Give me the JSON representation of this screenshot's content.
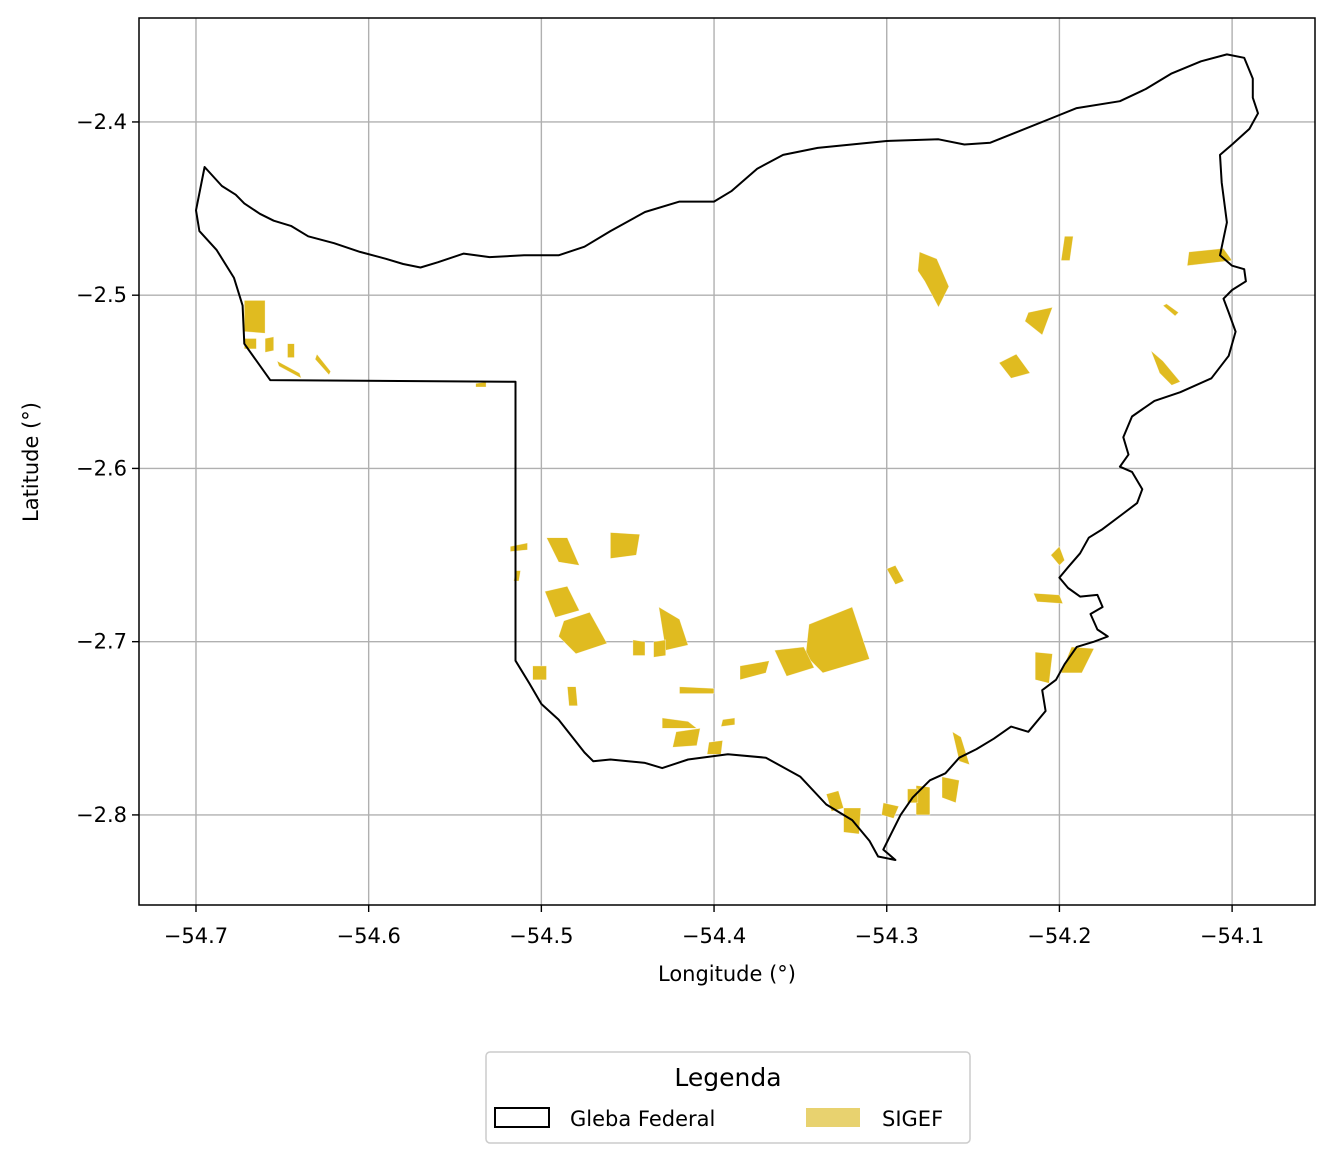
{
  "chart_data": {
    "type": "map",
    "xlabel": "Longitude (°)",
    "ylabel": "Latitude (°)",
    "xlim": [
      -54.733,
      -54.052
    ],
    "ylim": [
      -2.852,
      -2.34
    ],
    "grid": true,
    "x_ticks": [
      -54.7,
      -54.6,
      -54.5,
      -54.4,
      -54.3,
      -54.2,
      -54.1
    ],
    "y_ticks": [
      -2.4,
      -2.5,
      -2.6,
      -2.7,
      -2.8
    ],
    "x_tick_labels": [
      "−54.7",
      "−54.6",
      "−54.5",
      "−54.4",
      "−54.3",
      "−54.2",
      "−54.1"
    ],
    "y_tick_labels": [
      "−2.4",
      "−2.5",
      "−2.6",
      "−2.7",
      "−2.8"
    ],
    "legend": {
      "title": "Legenda",
      "placement": "bottom-center",
      "entries": [
        {
          "label": "Gleba Federal",
          "style": "outline",
          "color": "#000000"
        },
        {
          "label": "SIGEF",
          "style": "fill",
          "color": "#e0bb20"
        }
      ]
    },
    "gleba_boundary": [
      [
        -54.7,
        -2.451
      ],
      [
        -54.695,
        -2.426
      ],
      [
        -54.685,
        -2.437
      ],
      [
        -54.677,
        -2.442
      ],
      [
        -54.672,
        -2.447
      ],
      [
        -54.663,
        -2.453
      ],
      [
        -54.655,
        -2.457
      ],
      [
        -54.645,
        -2.46
      ],
      [
        -54.635,
        -2.466
      ],
      [
        -54.62,
        -2.47
      ],
      [
        -54.605,
        -2.475
      ],
      [
        -54.59,
        -2.479
      ],
      [
        -54.58,
        -2.482
      ],
      [
        -54.57,
        -2.484
      ],
      [
        -54.56,
        -2.481
      ],
      [
        -54.545,
        -2.476
      ],
      [
        -54.53,
        -2.478
      ],
      [
        -54.51,
        -2.477
      ],
      [
        -54.49,
        -2.477
      ],
      [
        -54.475,
        -2.472
      ],
      [
        -54.46,
        -2.463
      ],
      [
        -54.44,
        -2.452
      ],
      [
        -54.42,
        -2.446
      ],
      [
        -54.4,
        -2.446
      ],
      [
        -54.39,
        -2.44
      ],
      [
        -54.375,
        -2.427
      ],
      [
        -54.36,
        -2.419
      ],
      [
        -54.34,
        -2.415
      ],
      [
        -54.3,
        -2.411
      ],
      [
        -54.27,
        -2.41
      ],
      [
        -54.255,
        -2.413
      ],
      [
        -54.24,
        -2.412
      ],
      [
        -54.225,
        -2.406
      ],
      [
        -54.205,
        -2.398
      ],
      [
        -54.19,
        -2.392
      ],
      [
        -54.165,
        -2.388
      ],
      [
        -54.15,
        -2.381
      ],
      [
        -54.135,
        -2.372
      ],
      [
        -54.118,
        -2.365
      ],
      [
        -54.103,
        -2.361
      ],
      [
        -54.093,
        -2.363
      ],
      [
        -54.088,
        -2.375
      ],
      [
        -54.088,
        -2.386
      ],
      [
        -54.085,
        -2.395
      ],
      [
        -54.09,
        -2.404
      ],
      [
        -54.1,
        -2.413
      ],
      [
        -54.107,
        -2.419
      ],
      [
        -54.106,
        -2.435
      ],
      [
        -54.103,
        -2.458
      ],
      [
        -54.107,
        -2.477
      ],
      [
        -54.1,
        -2.483
      ],
      [
        -54.093,
        -2.485
      ],
      [
        -54.092,
        -2.492
      ],
      [
        -54.1,
        -2.497
      ],
      [
        -54.105,
        -2.502
      ],
      [
        -54.102,
        -2.51
      ],
      [
        -54.098,
        -2.521
      ],
      [
        -54.102,
        -2.535
      ],
      [
        -54.112,
        -2.548
      ],
      [
        -54.13,
        -2.556
      ],
      [
        -54.145,
        -2.561
      ],
      [
        -54.158,
        -2.57
      ],
      [
        -54.163,
        -2.582
      ],
      [
        -54.16,
        -2.592
      ],
      [
        -54.165,
        -2.599
      ],
      [
        -54.158,
        -2.602
      ],
      [
        -54.152,
        -2.612
      ],
      [
        -54.155,
        -2.62
      ],
      [
        -54.163,
        -2.626
      ],
      [
        -54.175,
        -2.635
      ],
      [
        -54.183,
        -2.64
      ],
      [
        -54.188,
        -2.649
      ],
      [
        -54.195,
        -2.657
      ],
      [
        -54.2,
        -2.663
      ],
      [
        -54.195,
        -2.669
      ],
      [
        -54.188,
        -2.674
      ],
      [
        -54.178,
        -2.673
      ],
      [
        -54.175,
        -2.68
      ],
      [
        -54.182,
        -2.684
      ],
      [
        -54.178,
        -2.693
      ],
      [
        -54.172,
        -2.697
      ],
      [
        -54.18,
        -2.7
      ],
      [
        -54.19,
        -2.703
      ],
      [
        -54.197,
        -2.713
      ],
      [
        -54.202,
        -2.722
      ],
      [
        -54.21,
        -2.728
      ],
      [
        -54.208,
        -2.74
      ],
      [
        -54.218,
        -2.752
      ],
      [
        -54.228,
        -2.749
      ],
      [
        -54.238,
        -2.756
      ],
      [
        -54.248,
        -2.762
      ],
      [
        -54.258,
        -2.767
      ],
      [
        -54.266,
        -2.776
      ],
      [
        -54.275,
        -2.78
      ],
      [
        -54.285,
        -2.79
      ],
      [
        -54.292,
        -2.8
      ],
      [
        -54.298,
        -2.812
      ],
      [
        -54.302,
        -2.82
      ],
      [
        -54.295,
        -2.826
      ],
      [
        -54.305,
        -2.824
      ],
      [
        -54.31,
        -2.815
      ],
      [
        -54.32,
        -2.803
      ],
      [
        -54.335,
        -2.794
      ],
      [
        -54.35,
        -2.778
      ],
      [
        -54.37,
        -2.767
      ],
      [
        -54.392,
        -2.765
      ],
      [
        -54.415,
        -2.768
      ],
      [
        -54.43,
        -2.773
      ],
      [
        -54.44,
        -2.77
      ],
      [
        -54.46,
        -2.768
      ],
      [
        -54.47,
        -2.769
      ],
      [
        -54.475,
        -2.764
      ],
      [
        -54.49,
        -2.745
      ],
      [
        -54.5,
        -2.736
      ],
      [
        -54.507,
        -2.724
      ],
      [
        -54.515,
        -2.711
      ],
      [
        -54.515,
        -2.65
      ],
      [
        -54.515,
        -2.55
      ],
      [
        -54.657,
        -2.549
      ],
      [
        -54.672,
        -2.528
      ],
      [
        -54.673,
        -2.506
      ],
      [
        -54.678,
        -2.49
      ],
      [
        -54.688,
        -2.474
      ],
      [
        -54.698,
        -2.463
      ]
    ],
    "sigef_parcels": [
      [
        [
          -54.672,
          -2.503
        ],
        [
          -54.66,
          -2.503
        ],
        [
          -54.66,
          -2.522
        ],
        [
          -54.672,
          -2.521
        ]
      ],
      [
        [
          -54.672,
          -2.525
        ],
        [
          -54.665,
          -2.525
        ],
        [
          -54.665,
          -2.531
        ],
        [
          -54.672,
          -2.531
        ]
      ],
      [
        [
          -54.66,
          -2.525
        ],
        [
          -54.655,
          -2.524
        ],
        [
          -54.655,
          -2.532
        ],
        [
          -54.66,
          -2.533
        ]
      ],
      [
        [
          -54.653,
          -2.538
        ],
        [
          -54.64,
          -2.545
        ],
        [
          -54.639,
          -2.548
        ],
        [
          -54.652,
          -2.541
        ]
      ],
      [
        [
          -54.63,
          -2.534
        ],
        [
          -54.622,
          -2.544
        ],
        [
          -54.623,
          -2.546
        ],
        [
          -54.631,
          -2.537
        ]
      ],
      [
        [
          -54.647,
          -2.528
        ],
        [
          -54.643,
          -2.528
        ],
        [
          -54.643,
          -2.536
        ],
        [
          -54.647,
          -2.536
        ]
      ],
      [
        [
          -54.281,
          -2.475
        ],
        [
          -54.271,
          -2.479
        ],
        [
          -54.264,
          -2.495
        ],
        [
          -54.27,
          -2.507
        ],
        [
          -54.278,
          -2.492
        ],
        [
          -54.282,
          -2.486
        ]
      ],
      [
        [
          -54.197,
          -2.466
        ],
        [
          -54.192,
          -2.466
        ],
        [
          -54.194,
          -2.48
        ],
        [
          -54.199,
          -2.48
        ]
      ],
      [
        [
          -54.105,
          -2.473
        ],
        [
          -54.125,
          -2.475
        ],
        [
          -54.126,
          -2.483
        ],
        [
          -54.1,
          -2.48
        ]
      ],
      [
        [
          -54.218,
          -2.51
        ],
        [
          -54.204,
          -2.507
        ],
        [
          -54.21,
          -2.523
        ],
        [
          -54.22,
          -2.515
        ]
      ],
      [
        [
          -54.235,
          -2.539
        ],
        [
          -54.225,
          -2.534
        ],
        [
          -54.217,
          -2.545
        ],
        [
          -54.228,
          -2.548
        ]
      ],
      [
        [
          -54.147,
          -2.532
        ],
        [
          -54.14,
          -2.538
        ],
        [
          -54.13,
          -2.55
        ],
        [
          -54.135,
          -2.552
        ],
        [
          -54.142,
          -2.545
        ]
      ],
      [
        [
          -54.138,
          -2.505
        ],
        [
          -54.131,
          -2.51
        ],
        [
          -54.133,
          -2.512
        ],
        [
          -54.14,
          -2.506
        ]
      ],
      [
        [
          -54.518,
          -2.645
        ],
        [
          -54.508,
          -2.643
        ],
        [
          -54.508,
          -2.647
        ],
        [
          -54.518,
          -2.648
        ]
      ],
      [
        [
          -54.497,
          -2.64
        ],
        [
          -54.485,
          -2.64
        ],
        [
          -54.478,
          -2.656
        ],
        [
          -54.49,
          -2.654
        ]
      ],
      [
        [
          -54.46,
          -2.637
        ],
        [
          -54.443,
          -2.638
        ],
        [
          -54.445,
          -2.65
        ],
        [
          -54.46,
          -2.652
        ]
      ],
      [
        [
          -54.515,
          -2.659
        ],
        [
          -54.512,
          -2.659
        ],
        [
          -54.513,
          -2.665
        ],
        [
          -54.516,
          -2.665
        ]
      ],
      [
        [
          -54.498,
          -2.671
        ],
        [
          -54.485,
          -2.668
        ],
        [
          -54.478,
          -2.682
        ],
        [
          -54.492,
          -2.686
        ]
      ],
      [
        [
          -54.487,
          -2.688
        ],
        [
          -54.472,
          -2.683
        ],
        [
          -54.462,
          -2.701
        ],
        [
          -54.48,
          -2.707
        ],
        [
          -54.49,
          -2.697
        ]
      ],
      [
        [
          -54.432,
          -2.68
        ],
        [
          -54.42,
          -2.687
        ],
        [
          -54.415,
          -2.702
        ],
        [
          -54.428,
          -2.705
        ]
      ],
      [
        [
          -54.447,
          -2.699
        ],
        [
          -54.44,
          -2.7
        ],
        [
          -54.44,
          -2.708
        ],
        [
          -54.447,
          -2.708
        ]
      ],
      [
        [
          -54.435,
          -2.7
        ],
        [
          -54.428,
          -2.699
        ],
        [
          -54.428,
          -2.708
        ],
        [
          -54.435,
          -2.709
        ]
      ],
      [
        [
          -54.505,
          -2.714
        ],
        [
          -54.497,
          -2.714
        ],
        [
          -54.497,
          -2.722
        ],
        [
          -54.505,
          -2.722
        ]
      ],
      [
        [
          -54.485,
          -2.726
        ],
        [
          -54.48,
          -2.726
        ],
        [
          -54.479,
          -2.737
        ],
        [
          -54.484,
          -2.737
        ]
      ],
      [
        [
          -54.345,
          -2.69
        ],
        [
          -54.32,
          -2.68
        ],
        [
          -54.31,
          -2.71
        ],
        [
          -54.337,
          -2.718
        ],
        [
          -54.347,
          -2.708
        ]
      ],
      [
        [
          -54.365,
          -2.705
        ],
        [
          -54.348,
          -2.703
        ],
        [
          -54.342,
          -2.715
        ],
        [
          -54.358,
          -2.72
        ]
      ],
      [
        [
          -54.385,
          -2.714
        ],
        [
          -54.368,
          -2.711
        ],
        [
          -54.37,
          -2.718
        ],
        [
          -54.385,
          -2.722
        ]
      ],
      [
        [
          -54.42,
          -2.726
        ],
        [
          -54.4,
          -2.727
        ],
        [
          -54.4,
          -2.73
        ],
        [
          -54.42,
          -2.73
        ]
      ],
      [
        [
          -54.43,
          -2.744
        ],
        [
          -54.415,
          -2.746
        ],
        [
          -54.41,
          -2.75
        ],
        [
          -54.43,
          -2.75
        ]
      ],
      [
        [
          -54.422,
          -2.752
        ],
        [
          -54.408,
          -2.75
        ],
        [
          -54.41,
          -2.76
        ],
        [
          -54.424,
          -2.761
        ]
      ],
      [
        [
          -54.403,
          -2.758
        ],
        [
          -54.395,
          -2.757
        ],
        [
          -54.396,
          -2.765
        ],
        [
          -54.404,
          -2.765
        ]
      ],
      [
        [
          -54.395,
          -2.745
        ],
        [
          -54.388,
          -2.744
        ],
        [
          -54.388,
          -2.748
        ],
        [
          -54.396,
          -2.749
        ]
      ],
      [
        [
          -54.3,
          -2.658
        ],
        [
          -54.295,
          -2.656
        ],
        [
          -54.29,
          -2.665
        ],
        [
          -54.295,
          -2.667
        ]
      ],
      [
        [
          -54.215,
          -2.672
        ],
        [
          -54.2,
          -2.673
        ],
        [
          -54.198,
          -2.678
        ],
        [
          -54.213,
          -2.677
        ]
      ],
      [
        [
          -54.193,
          -2.703
        ],
        [
          -54.18,
          -2.704
        ],
        [
          -54.187,
          -2.718
        ],
        [
          -54.199,
          -2.718
        ]
      ],
      [
        [
          -54.214,
          -2.706
        ],
        [
          -54.204,
          -2.707
        ],
        [
          -54.206,
          -2.724
        ],
        [
          -54.214,
          -2.722
        ]
      ],
      [
        [
          -54.205,
          -2.65
        ],
        [
          -54.2,
          -2.645
        ],
        [
          -54.197,
          -2.653
        ],
        [
          -54.2,
          -2.656
        ]
      ],
      [
        [
          -54.283,
          -2.783
        ],
        [
          -54.275,
          -2.784
        ],
        [
          -54.275,
          -2.8
        ],
        [
          -54.283,
          -2.8
        ]
      ],
      [
        [
          -54.288,
          -2.785
        ],
        [
          -54.282,
          -2.785
        ],
        [
          -54.282,
          -2.793
        ],
        [
          -54.288,
          -2.793
        ]
      ],
      [
        [
          -54.268,
          -2.778
        ],
        [
          -54.258,
          -2.78
        ],
        [
          -54.26,
          -2.793
        ],
        [
          -54.268,
          -2.79
        ]
      ],
      [
        [
          -54.262,
          -2.752
        ],
        [
          -54.257,
          -2.755
        ],
        [
          -54.252,
          -2.771
        ],
        [
          -54.258,
          -2.769
        ]
      ],
      [
        [
          -54.325,
          -2.796
        ],
        [
          -54.315,
          -2.796
        ],
        [
          -54.316,
          -2.811
        ],
        [
          -54.325,
          -2.81
        ]
      ],
      [
        [
          -54.335,
          -2.788
        ],
        [
          -54.328,
          -2.786
        ],
        [
          -54.325,
          -2.796
        ],
        [
          -54.332,
          -2.798
        ]
      ],
      [
        [
          -54.302,
          -2.793
        ],
        [
          -54.293,
          -2.795
        ],
        [
          -54.296,
          -2.802
        ],
        [
          -54.303,
          -2.8
        ]
      ],
      [
        [
          -54.538,
          -2.551
        ],
        [
          -54.532,
          -2.55
        ],
        [
          -54.532,
          -2.553
        ],
        [
          -54.538,
          -2.553
        ]
      ]
    ]
  }
}
